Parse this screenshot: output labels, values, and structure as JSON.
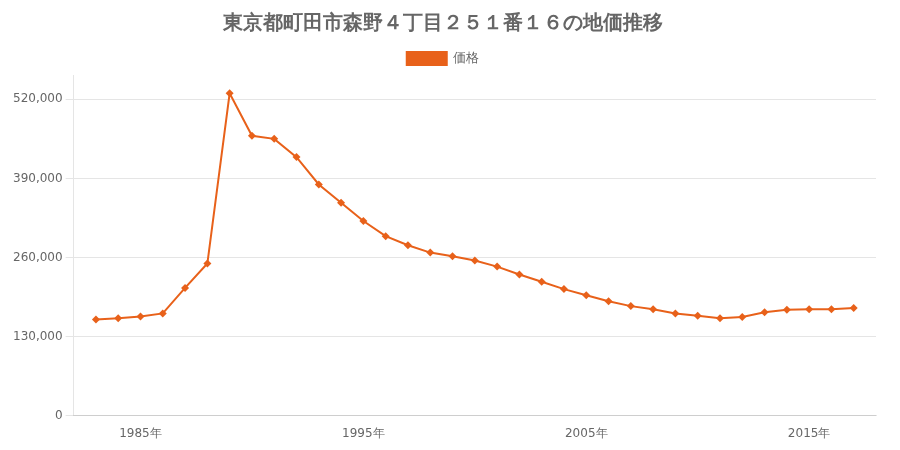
{
  "chart_data": {
    "type": "line",
    "title": "東京都町田市森野４丁目２５１番１６の地価推移",
    "x": [
      1983,
      1984,
      1985,
      1986,
      1987,
      1988,
      1989,
      1990,
      1991,
      1992,
      1993,
      1994,
      1995,
      1996,
      1997,
      1998,
      1999,
      2000,
      2001,
      2002,
      2003,
      2004,
      2005,
      2006,
      2007,
      2008,
      2009,
      2010,
      2011,
      2012,
      2013,
      2014,
      2015,
      2016,
      2017
    ],
    "series": [
      {
        "name": "価格",
        "color": "#e8611a",
        "marker": "diamond",
        "values": [
          158000,
          160000,
          163000,
          168000,
          210000,
          250000,
          530000,
          460000,
          455000,
          425000,
          380000,
          350000,
          320000,
          295000,
          280000,
          268000,
          262000,
          255000,
          245000,
          232000,
          220000,
          208000,
          198000,
          188000,
          180000,
          175000,
          168000,
          164000,
          160000,
          162000,
          170000,
          174000,
          175000,
          175000,
          177000
        ]
      }
    ],
    "xlim": [
      1982,
      2018
    ],
    "xticks": [
      {
        "value": 1985,
        "label": "1985年"
      },
      {
        "value": 1995,
        "label": "1995年"
      },
      {
        "value": 2005,
        "label": "2005年"
      },
      {
        "value": 2015,
        "label": "2015年"
      }
    ],
    "ylim": [
      0,
      560000
    ],
    "yticks": [
      0,
      {
        "value": 130000,
        "label": "130,000"
      },
      {
        "value": 260000,
        "label": "260,000"
      },
      {
        "value": 390000,
        "label": "390,000"
      },
      {
        "value": 520000,
        "label": "520,000"
      }
    ],
    "grid": "y",
    "legend": "top"
  }
}
